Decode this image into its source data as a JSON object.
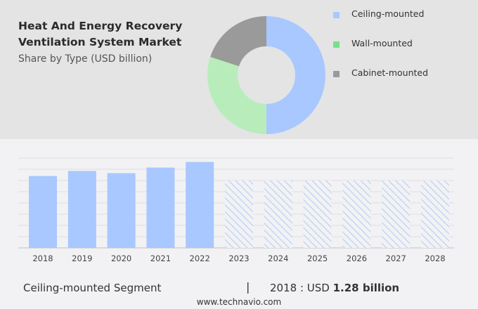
{
  "header": {
    "title_line1": "Heat And Energy Recovery",
    "title_line2": "Ventilation System Market",
    "subtitle": "Share by Type (USD billion)"
  },
  "chart_data": [
    {
      "type": "pie",
      "donut": true,
      "categories": [
        "Ceiling-mounted",
        "Wall-mounted",
        "Cabinet-mounted"
      ],
      "values": [
        50,
        30,
        20
      ],
      "colors": [
        "#a8c8ff",
        "#b8edbb",
        "#9a9a9a"
      ],
      "legend_colors": [
        "#a8c8ff",
        "#77e08a",
        "#9a9a9a"
      ],
      "legend": "right"
    },
    {
      "type": "bar",
      "categories": [
        "2018",
        "2019",
        "2020",
        "2021",
        "2022",
        "2023",
        "2024",
        "2025",
        "2026",
        "2027",
        "2028"
      ],
      "values": [
        1.28,
        1.37,
        1.33,
        1.43,
        1.53,
        null,
        null,
        null,
        null,
        null,
        null
      ],
      "forecast": [
        false,
        false,
        false,
        false,
        false,
        true,
        true,
        true,
        true,
        true,
        true
      ],
      "unit": "USD billion",
      "color": "#a8c8ff",
      "grid": true,
      "ylim": [
        0,
        1.6
      ]
    }
  ],
  "footer": {
    "segment": "Ceiling-mounted Segment",
    "separator": "|",
    "year_label": "2018 : USD ",
    "value": "1.28 billion",
    "website": "www.technavio.com"
  }
}
